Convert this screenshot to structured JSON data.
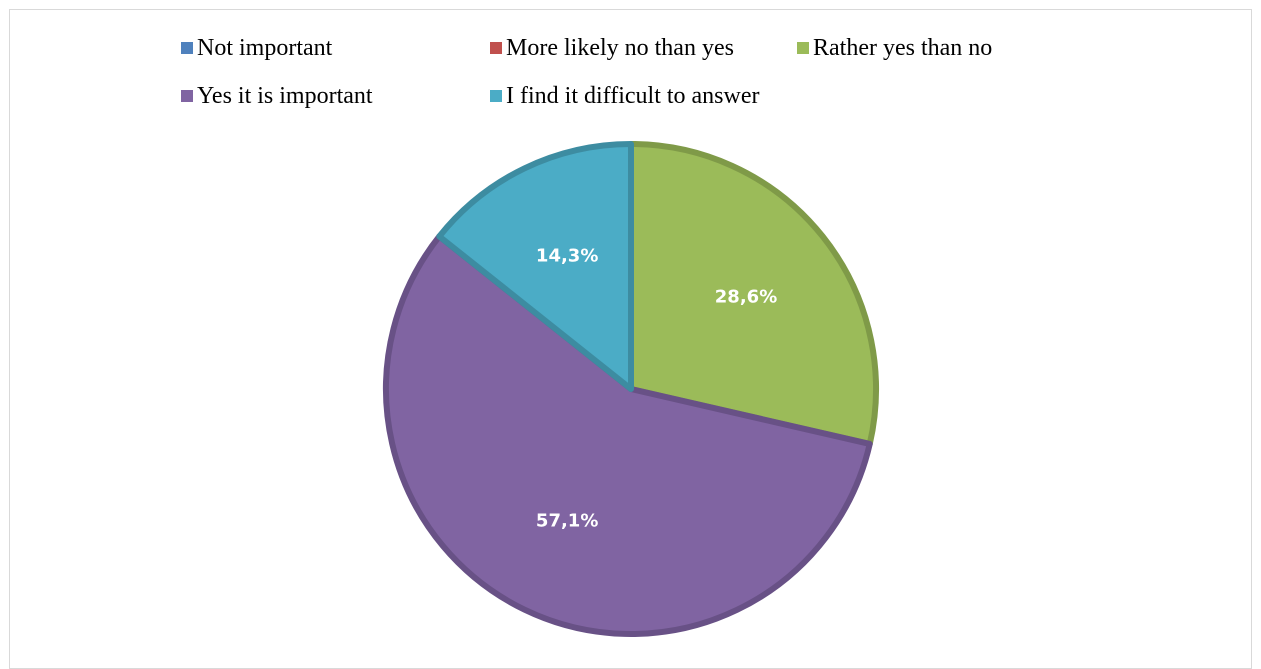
{
  "chart_data": {
    "type": "pie",
    "title": "",
    "legend_placement": "top",
    "categories": [
      "Not important",
      "More likely no than yes",
      "Rather yes than no",
      "Yes it is important",
      "I find it difficult to answer"
    ],
    "values": [
      0,
      0,
      28.6,
      57.1,
      14.3
    ],
    "data_labels": [
      "",
      "",
      "28,6%",
      "57,1%",
      "14,3%"
    ],
    "colors": [
      "#4f81bd",
      "#c0504d",
      "#9bbb59",
      "#8064a2",
      "#4bacc6"
    ],
    "border_colors": [
      "#3f6797",
      "#9a403e",
      "#7f9a48",
      "#685186",
      "#3d8ca1"
    ]
  }
}
